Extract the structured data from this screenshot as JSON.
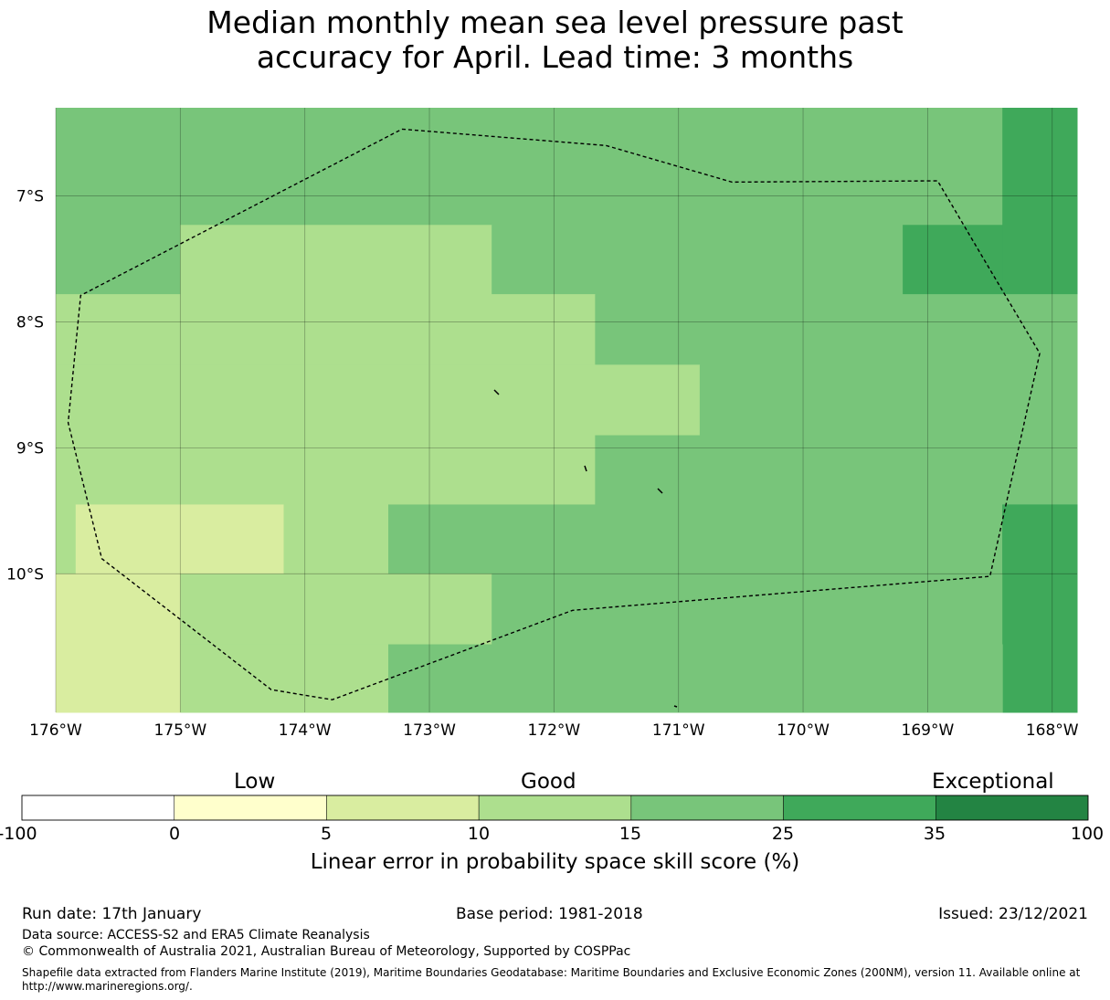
{
  "title_line1": "Median monthly mean sea level pressure past",
  "title_line2": "accuracy for April. Lead time: 3 months",
  "map": {
    "lon_range": [
      -176,
      -167.8
    ],
    "lat_range": [
      -11.1,
      -6.3
    ],
    "lon_ticks": [
      {
        "value": -176,
        "label": "176°W"
      },
      {
        "value": -175,
        "label": "175°W"
      },
      {
        "value": -174,
        "label": "174°W"
      },
      {
        "value": -173,
        "label": "173°W"
      },
      {
        "value": -172,
        "label": "172°W"
      },
      {
        "value": -171,
        "label": "171°W"
      },
      {
        "value": -170,
        "label": "170°W"
      },
      {
        "value": -169,
        "label": "169°W"
      },
      {
        "value": -168,
        "label": "168°W"
      }
    ],
    "lat_ticks": [
      {
        "value": -7,
        "label": "7°S"
      },
      {
        "value": -8,
        "label": "8°S"
      },
      {
        "value": -9,
        "label": "9°S"
      },
      {
        "value": -10,
        "label": "10°S"
      }
    ],
    "cell_colors": [
      "#d9eda0",
      "#addf8e",
      "#78c57a",
      "#3fa95a"
    ],
    "cells": [
      {
        "lon": [
          -176,
          -168.4
        ],
        "lat": [
          -7.23,
          -6.3
        ],
        "cls": 2
      },
      {
        "lon": [
          -168.4,
          -167.8
        ],
        "lat": [
          -7.78,
          -6.3
        ],
        "cls": 3
      },
      {
        "lon": [
          -176,
          -175
        ],
        "lat": [
          -7.78,
          -7.23
        ],
        "cls": 2
      },
      {
        "lon": [
          -175,
          -172.5
        ],
        "lat": [
          -7.78,
          -7.23
        ],
        "cls": 1
      },
      {
        "lon": [
          -172.5,
          -169.2
        ],
        "lat": [
          -7.78,
          -7.23
        ],
        "cls": 2
      },
      {
        "lon": [
          -169.2,
          -168.4
        ],
        "lat": [
          -7.78,
          -7.23
        ],
        "cls": 3
      },
      {
        "lon": [
          -176,
          -171.67
        ],
        "lat": [
          -8.34,
          -7.78
        ],
        "cls": 1
      },
      {
        "lon": [
          -171.67,
          -167.8
        ],
        "lat": [
          -8.34,
          -7.78
        ],
        "cls": 2
      },
      {
        "lon": [
          -176,
          -170.83
        ],
        "lat": [
          -8.9,
          -8.34
        ],
        "cls": 1
      },
      {
        "lon": [
          -170.83,
          -167.8
        ],
        "lat": [
          -8.9,
          -8.34
        ],
        "cls": 2
      },
      {
        "lon": [
          -176,
          -171.67
        ],
        "lat": [
          -9.45,
          -8.9
        ],
        "cls": 1
      },
      {
        "lon": [
          -171.67,
          -167.8
        ],
        "lat": [
          -9.45,
          -8.9
        ],
        "cls": 2
      },
      {
        "lon": [
          -176,
          -175.84
        ],
        "lat": [
          -10.0,
          -9.45
        ],
        "cls": 1
      },
      {
        "lon": [
          -175.84,
          -174.17
        ],
        "lat": [
          -10.0,
          -9.45
        ],
        "cls": 0
      },
      {
        "lon": [
          -174.17,
          -173.33
        ],
        "lat": [
          -10.0,
          -9.45
        ],
        "cls": 1
      },
      {
        "lon": [
          -173.33,
          -168.4
        ],
        "lat": [
          -10.0,
          -9.45
        ],
        "cls": 2
      },
      {
        "lon": [
          -168.4,
          -167.8
        ],
        "lat": [
          -10.0,
          -9.45
        ],
        "cls": 3
      },
      {
        "lon": [
          -176,
          -175
        ],
        "lat": [
          -11.1,
          -10.0
        ],
        "cls": 0
      },
      {
        "lon": [
          -175,
          -172.5
        ],
        "lat": [
          -10.56,
          -10.0
        ],
        "cls": 1
      },
      {
        "lon": [
          -172.5,
          -168.4
        ],
        "lat": [
          -10.56,
          -10.0
        ],
        "cls": 2
      },
      {
        "lon": [
          -168.4,
          -167.8
        ],
        "lat": [
          -11.1,
          -9.45
        ],
        "cls": 3
      },
      {
        "lon": [
          -175,
          -173.33
        ],
        "lat": [
          -11.1,
          -10.56
        ],
        "cls": 1
      },
      {
        "lon": [
          -173.33,
          -168.4
        ],
        "lat": [
          -11.1,
          -10.56
        ],
        "cls": 2
      }
    ],
    "eez_boundary": [
      [
        -173.22,
        -6.47
      ],
      [
        -171.58,
        -6.6
      ],
      [
        -170.57,
        -6.89
      ],
      [
        -168.92,
        -6.88
      ],
      [
        -168.55,
        -7.5
      ],
      [
        -168.1,
        -8.25
      ],
      [
        -168.5,
        -10.02
      ],
      [
        -171.85,
        -10.29
      ],
      [
        -173.78,
        -11.0
      ],
      [
        -174.27,
        -10.92
      ],
      [
        -175.63,
        -9.88
      ],
      [
        -175.9,
        -8.8
      ],
      [
        -175.8,
        -7.79
      ],
      [
        -173.22,
        -6.47
      ]
    ]
  },
  "colorbar": {
    "tiers": [
      "Low",
      "Good",
      "Exceptional"
    ],
    "boundaries": [
      "-100",
      "0",
      "5",
      "10",
      "15",
      "25",
      "35",
      "100"
    ],
    "colors": [
      "#ffffff",
      "#ffffcc",
      "#d9eda0",
      "#addf8e",
      "#78c57a",
      "#3fa95a",
      "#238443"
    ],
    "label": "Linear error in probability space skill score (%)"
  },
  "footer": {
    "run_date": "Run date: 17th January",
    "base_period": "Base period: 1981-2018",
    "issued": "Issued: 23/12/2021",
    "data_source": "Data source: ACCESS-S2 and ERA5 Climate Reanalysis",
    "copyright": "© Commonwealth of Australia 2021, Australian Bureau of Meteorology, Supported by COSPPac",
    "shapefile_line1": "Shapefile data extracted from Flanders Marine Institute (2019), Maritime Boundaries Geodatabase: Maritime Boundaries and Exclusive Economic Zones (200NM), version 11. Available online at",
    "shapefile_line2": "http://www.marineregions.org/."
  }
}
